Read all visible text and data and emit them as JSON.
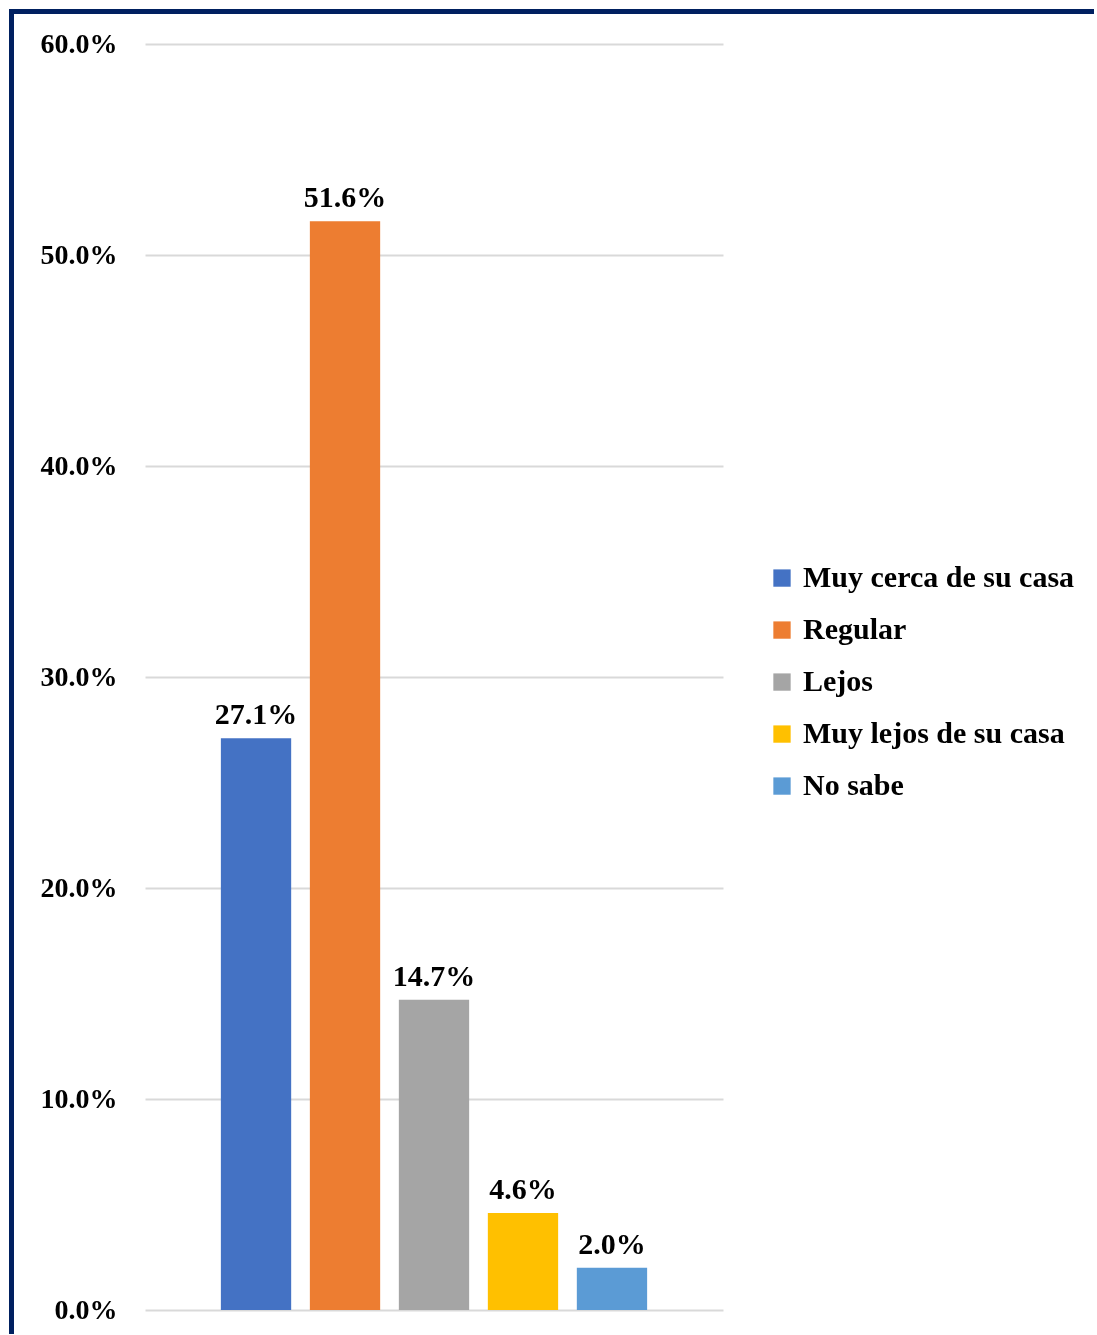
{
  "chart_data": {
    "type": "bar",
    "categories": [
      null
    ],
    "series": [
      {
        "name": "Muy cerca de su casa",
        "color": "#4472c4",
        "values": [
          27.1
        ],
        "value_labels": [
          "27.1%"
        ]
      },
      {
        "name": "Regular",
        "color": "#ed7d31",
        "values": [
          51.6
        ],
        "value_labels": [
          "51.6%"
        ]
      },
      {
        "name": "Lejos",
        "color": "#a5a5a5",
        "values": [
          14.7
        ],
        "value_labels": [
          "14.7%"
        ]
      },
      {
        "name": "Muy lejos de su casa",
        "color": "#ffc000",
        "values": [
          4.6
        ],
        "value_labels": [
          "4.6%"
        ]
      },
      {
        "name": "No sabe",
        "color": "#5b9bd5",
        "values": [
          2.0
        ],
        "value_labels": [
          "2.0%"
        ]
      }
    ],
    "ylim": [
      0,
      60
    ],
    "yticks": [
      {
        "value": 0,
        "label": "0.0%"
      },
      {
        "value": 10,
        "label": "10.0%"
      },
      {
        "value": 20,
        "label": "20.0%"
      },
      {
        "value": 30,
        "label": "30.0%"
      },
      {
        "value": 40,
        "label": "40.0%"
      },
      {
        "value": 50,
        "label": "50.0%"
      },
      {
        "value": 60,
        "label": "60.0%"
      }
    ],
    "grid": "y",
    "legend": "right",
    "tick_labels": "y"
  }
}
